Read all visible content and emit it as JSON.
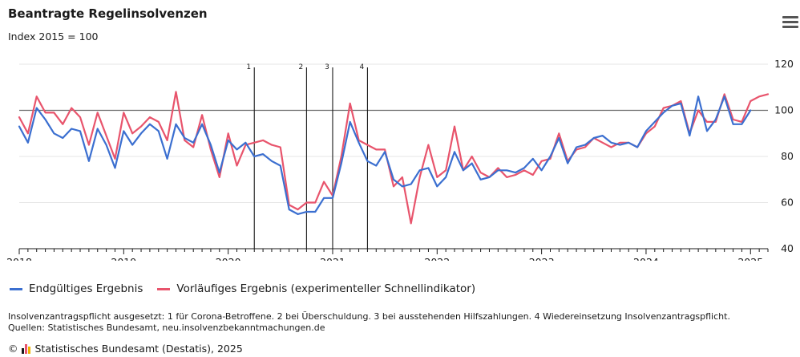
{
  "header": {
    "title": "Beantragte Regelinsolvenzen",
    "subtitle": "Index 2015 = 100"
  },
  "legend": {
    "final_label": "Endgültiges Ergebnis",
    "prelim_label": "Vorläufiges Ergebnis (experimenteller Schnellindikator)"
  },
  "footer": {
    "note": "Insolvenzantragspflicht ausgesetzt: 1 für Corona-Betroffene. 2 bei Überschuldung. 3 bei ausstehenden Hilfszahlungen. 4 Wiedereinsetzung Insolvenzantragspflicht.",
    "sources": "Quellen: Statistisches Bundesamt, neu.insolvenzbekanntmachungen.de",
    "credit": "Statistisches Bundesamt (Destatis), 2025"
  },
  "colors": {
    "final": "#3b6fd0",
    "prelim": "#e8546c",
    "grid": "#e6e6e6",
    "reference": "#666666"
  },
  "chart_data": {
    "type": "line",
    "title": "Beantragte Regelinsolvenzen",
    "subtitle": "Index 2015 = 100",
    "x_start": "2018-01",
    "x_ticks": [
      "2018",
      "2019",
      "2020",
      "2021",
      "2022",
      "2023",
      "2024",
      "2025"
    ],
    "y_ticks": [
      "40",
      "60",
      "80",
      "100",
      "120"
    ],
    "ylim": [
      40,
      120
    ],
    "reference_y": 100,
    "grid": true,
    "legend_position": "bottom-left",
    "events": [
      {
        "label": "1",
        "date": "2020-04"
      },
      {
        "label": "2",
        "date": "2020-10"
      },
      {
        "label": "3",
        "date": "2021-01"
      },
      {
        "label": "4",
        "date": "2021-05"
      }
    ],
    "series": [
      {
        "name": "Endgültiges Ergebnis",
        "values": [
          93,
          86,
          101,
          96,
          90,
          88,
          92,
          91,
          78,
          92,
          85,
          75,
          91,
          85,
          90,
          94,
          91,
          79,
          94,
          88,
          86,
          94,
          85,
          73,
          87,
          83,
          86,
          80,
          81,
          78,
          76,
          57,
          55,
          56,
          56,
          62,
          62,
          77,
          95,
          86,
          78,
          76,
          82,
          70,
          67,
          68,
          74,
          75,
          67,
          71,
          82,
          74,
          77,
          70,
          71,
          74,
          74,
          73,
          75,
          79,
          74,
          80,
          88,
          77,
          84,
          85,
          88,
          89,
          86,
          85,
          86,
          84,
          91,
          95,
          99,
          102,
          103,
          89,
          106,
          91,
          96,
          106,
          94,
          94,
          100
        ]
      },
      {
        "name": "Vorläufiges Ergebnis (experimenteller Schnellindikator)",
        "values": [
          97,
          90,
          106,
          99,
          99,
          94,
          101,
          97,
          85,
          99,
          89,
          79,
          99,
          90,
          93,
          97,
          95,
          87,
          108,
          87,
          84,
          98,
          83,
          71,
          90,
          76,
          85,
          86,
          87,
          85,
          84,
          59,
          57,
          60,
          60,
          69,
          63,
          80,
          103,
          87,
          85,
          83,
          83,
          67,
          71,
          51,
          71,
          85,
          71,
          74,
          93,
          74,
          80,
          73,
          71,
          75,
          71,
          72,
          74,
          72,
          78,
          79,
          90,
          78,
          83,
          84,
          88,
          86,
          84,
          86,
          86,
          84,
          90,
          93,
          101,
          102,
          104,
          90,
          100,
          95,
          95,
          107,
          96,
          95,
          104,
          106,
          107
        ]
      }
    ]
  }
}
